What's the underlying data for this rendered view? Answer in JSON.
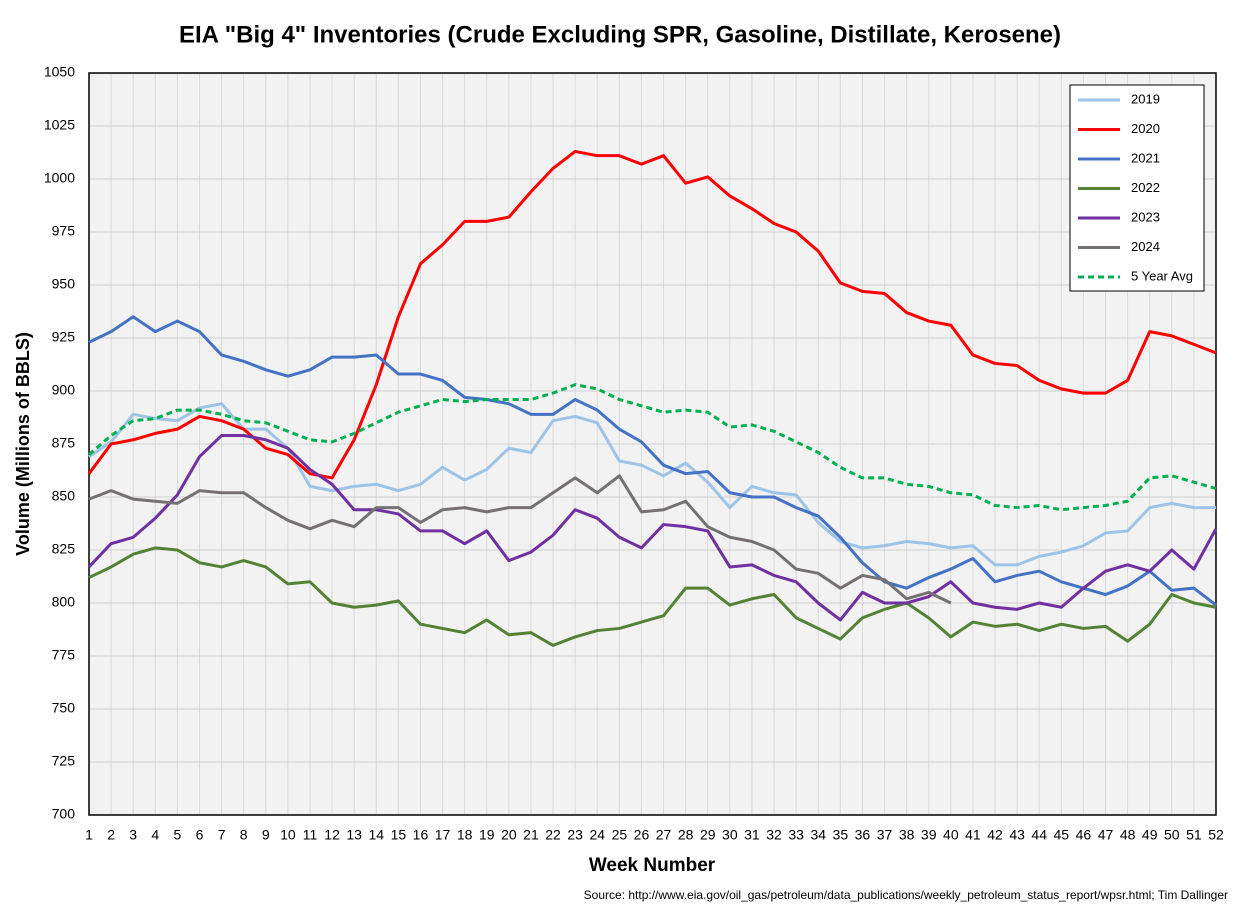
{
  "chart_data": {
    "type": "line",
    "title": "EIA \"Big 4\" Inventories (Crude Excluding SPR, Gasoline, Distillate, Kerosene)",
    "x_label": "Week Number",
    "y_label": "Volume (Millions of BBLS)",
    "source": "Source: http://www.eia.gov/oil_gas/petroleum/data_publications/weekly_petroleum_status_report/wpsr.html; Tim Dallinger",
    "x": [
      1,
      2,
      3,
      4,
      5,
      6,
      7,
      8,
      9,
      10,
      11,
      12,
      13,
      14,
      15,
      16,
      17,
      18,
      19,
      20,
      21,
      22,
      23,
      24,
      25,
      26,
      27,
      28,
      29,
      30,
      31,
      32,
      33,
      34,
      35,
      36,
      37,
      38,
      39,
      40,
      41,
      42,
      43,
      44,
      45,
      46,
      47,
      48,
      49,
      50,
      51,
      52
    ],
    "xlim": [
      1,
      52
    ],
    "xticks": [
      1,
      2,
      3,
      4,
      5,
      6,
      7,
      8,
      9,
      10,
      11,
      12,
      13,
      14,
      15,
      16,
      17,
      18,
      19,
      20,
      21,
      22,
      23,
      24,
      25,
      26,
      27,
      28,
      29,
      30,
      31,
      32,
      33,
      34,
      35,
      36,
      37,
      38,
      39,
      40,
      41,
      42,
      43,
      44,
      45,
      46,
      47,
      48,
      49,
      50,
      51,
      52
    ],
    "ylim": [
      700,
      1050
    ],
    "yticks": [
      700,
      725,
      750,
      775,
      800,
      825,
      850,
      875,
      900,
      925,
      950,
      975,
      1000,
      1025,
      1050
    ],
    "grid": true,
    "legend": "top-right",
    "series": [
      {
        "name": "2019",
        "color": "#9dc3e6",
        "values": [
          869,
          876,
          889,
          887,
          886,
          892,
          894,
          882,
          882,
          873,
          855,
          853,
          855,
          856,
          853,
          856,
          864,
          858,
          863,
          873,
          871,
          886,
          888,
          885,
          867,
          865,
          860,
          866,
          857,
          845,
          855,
          852,
          851,
          838,
          829,
          826,
          827,
          829,
          828,
          826,
          827,
          818,
          818,
          822,
          824,
          827,
          833,
          834,
          845,
          847,
          845,
          845
        ]
      },
      {
        "name": "2020",
        "color": "#ff0000",
        "values": [
          861,
          875,
          877,
          880,
          882,
          888,
          886,
          882,
          873,
          870,
          861,
          859,
          877,
          903,
          935,
          960,
          969,
          980,
          980,
          982,
          994,
          1005,
          1013,
          1011,
          1011,
          1007,
          1011,
          998,
          1001,
          992,
          986,
          979,
          975,
          966,
          951,
          947,
          946,
          937,
          933,
          931,
          917,
          913,
          912,
          905,
          901,
          899,
          899,
          905,
          928,
          926,
          922,
          918
        ]
      },
      {
        "name": "2021",
        "color": "#4472c4",
        "values": [
          923,
          928,
          935,
          928,
          933,
          928,
          917,
          914,
          910,
          907,
          910,
          916,
          916,
          917,
          908,
          908,
          905,
          897,
          896,
          894,
          889,
          889,
          896,
          891,
          882,
          876,
          865,
          861,
          862,
          852,
          850,
          850,
          845,
          841,
          831,
          819,
          810,
          807,
          812,
          816,
          821,
          810,
          813,
          815,
          810,
          807,
          804,
          808,
          815,
          806,
          807,
          799
        ]
      },
      {
        "name": "2022",
        "color": "#548235",
        "values": [
          812,
          817,
          823,
          826,
          825,
          819,
          817,
          820,
          817,
          809,
          810,
          800,
          798,
          799,
          801,
          790,
          788,
          786,
          792,
          785,
          786,
          780,
          784,
          787,
          788,
          791,
          794,
          807,
          807,
          799,
          802,
          804,
          793,
          788,
          783,
          793,
          797,
          800,
          793,
          784,
          791,
          789,
          790,
          787,
          790,
          788,
          789,
          782,
          790,
          804,
          800,
          798
        ]
      },
      {
        "name": "2023",
        "color": "#7030a0",
        "values": [
          817,
          828,
          831,
          840,
          851,
          869,
          879,
          879,
          877,
          873,
          863,
          856,
          844,
          844,
          842,
          834,
          834,
          828,
          834,
          820,
          824,
          832,
          844,
          840,
          831,
          826,
          837,
          836,
          834,
          817,
          818,
          813,
          810,
          800,
          792,
          805,
          800,
          800,
          803,
          810,
          800,
          798,
          797,
          800,
          798,
          807,
          815,
          818,
          815,
          825,
          816,
          835
        ]
      },
      {
        "name": "2024",
        "color": "#767171",
        "values": [
          849,
          853,
          849,
          848,
          847,
          853,
          852,
          852,
          845,
          839,
          835,
          839,
          836,
          845,
          845,
          838,
          844,
          845,
          843,
          845,
          845,
          852,
          859,
          852,
          860,
          843,
          844,
          848,
          836,
          831,
          829,
          825,
          816,
          814,
          807,
          813,
          811,
          802,
          805,
          800,
          null,
          null,
          null,
          null,
          null,
          null,
          null,
          null,
          null,
          null,
          null,
          null
        ]
      },
      {
        "name": "5 Year Avg",
        "color": "#00b050",
        "dashed": true,
        "values": [
          870,
          879,
          886,
          887,
          891,
          891,
          889,
          886,
          885,
          881,
          877,
          876,
          880,
          885,
          890,
          893,
          896,
          895,
          896,
          896,
          896,
          899,
          903,
          901,
          896,
          893,
          890,
          891,
          890,
          883,
          884,
          881,
          876,
          871,
          864,
          859,
          859,
          856,
          855,
          852,
          851,
          846,
          845,
          846,
          844,
          845,
          846,
          848,
          859,
          860,
          857,
          854
        ]
      }
    ]
  }
}
